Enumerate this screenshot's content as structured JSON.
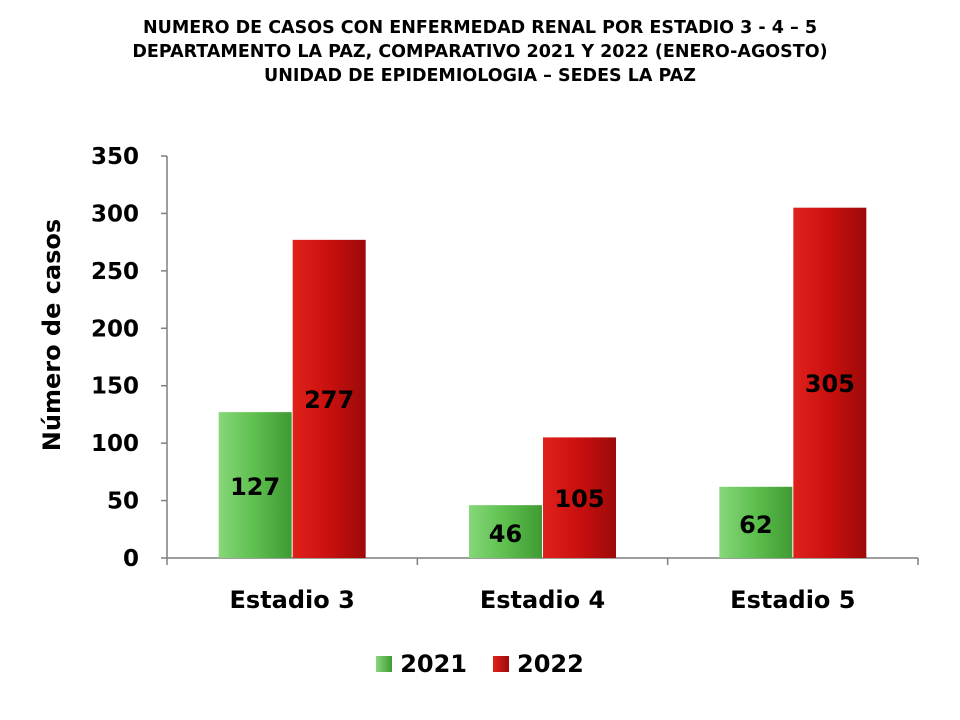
{
  "title_lines": [
    "NUMERO DE CASOS CON ENFERMEDAD RENAL POR ESTADIO 3 - 4 – 5",
    "DEPARTAMENTO LA PAZ, COMPARATIVO 2021 Y 2022 (ENERO-AGOSTO)",
    "UNIDAD DE EPIDEMIOLOGIA – SEDES LA PAZ"
  ],
  "chart_data": {
    "type": "bar",
    "title": "NUMERO DE CASOS CON ENFERMEDAD RENAL POR ESTADIO 3 - 4 – 5 DEPARTAMENTO LA PAZ, COMPARATIVO 2021 Y 2022 (ENERO-AGOSTO) UNIDAD DE EPIDEMIOLOGIA – SEDES LA PAZ",
    "categories": [
      "Estadio 3",
      "Estadio 4",
      "Estadio 5"
    ],
    "series": [
      {
        "name": "2021",
        "values": [
          127,
          46,
          62
        ],
        "color": "#5dbf4e"
      },
      {
        "name": "2022",
        "values": [
          277,
          105,
          305
        ],
        "color": "#c9100f"
      }
    ],
    "xlabel": "",
    "ylabel": "Número de casos",
    "ylim": [
      0,
      350
    ],
    "yticks": [
      0,
      50,
      100,
      150,
      200,
      250,
      300,
      350
    ],
    "grid": false,
    "legend_position": "bottom"
  }
}
